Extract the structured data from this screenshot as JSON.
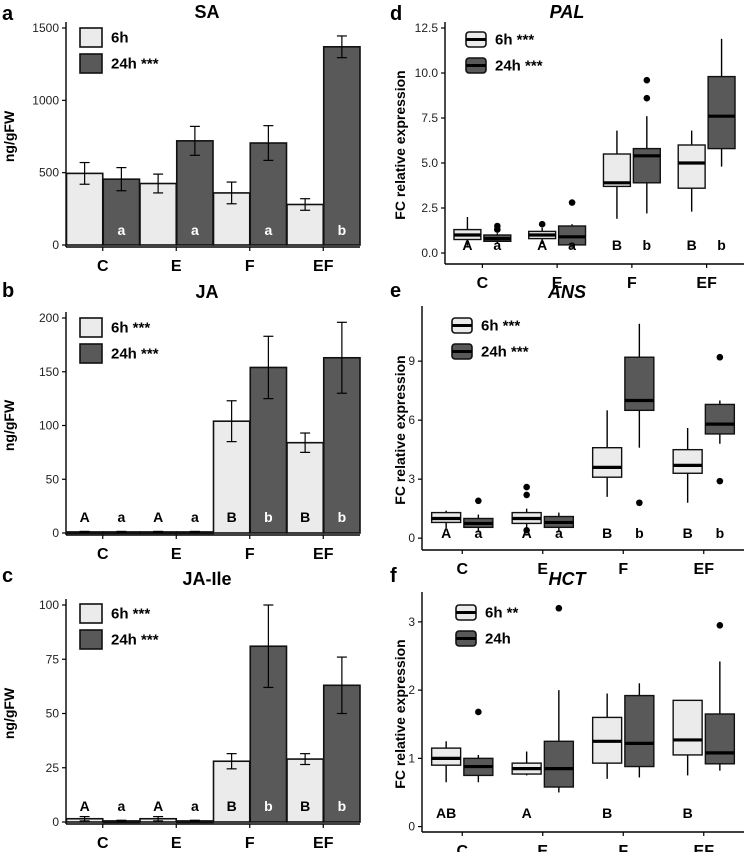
{
  "figure": {
    "colors": {
      "light": "#ebebeb",
      "dark": "#595959",
      "stroke": "#111111"
    }
  },
  "chart_data": [
    {
      "panel": "a",
      "type": "bar",
      "title": "SA",
      "title_italic": false,
      "ylabel": "ng/gFW",
      "ylim": [
        0,
        1500
      ],
      "yticks": [
        0,
        500,
        1000,
        1500
      ],
      "categories": [
        "C",
        "E",
        "F",
        "EF"
      ],
      "legend": [
        "6h",
        "24h ***"
      ],
      "series": [
        {
          "name": "6h",
          "values": [
            495,
            425,
            360,
            280
          ],
          "errors": [
            75,
            65,
            75,
            40
          ],
          "letters": [
            "",
            "",
            "",
            ""
          ]
        },
        {
          "name": "24h",
          "values": [
            455,
            720,
            705,
            1370
          ],
          "errors": [
            80,
            100,
            120,
            75
          ],
          "letters": [
            "a",
            "a",
            "a",
            "b"
          ]
        }
      ]
    },
    {
      "panel": "b",
      "type": "bar",
      "title": "JA",
      "title_italic": false,
      "ylabel": "ng/gFW",
      "ylim": [
        0,
        200
      ],
      "yticks": [
        0,
        50,
        100,
        150,
        200
      ],
      "categories": [
        "C",
        "E",
        "F",
        "EF"
      ],
      "legend": [
        "6h ***",
        "24h ***"
      ],
      "series": [
        {
          "name": "6h",
          "values": [
            1,
            1,
            104,
            84
          ],
          "errors": [
            0.5,
            0.5,
            19,
            9
          ],
          "letters": [
            "A",
            "A",
            "B",
            "B"
          ]
        },
        {
          "name": "24h",
          "values": [
            1,
            1,
            154,
            163
          ],
          "errors": [
            0.5,
            0.5,
            29,
            33
          ],
          "letters": [
            "a",
            "a",
            "b",
            "b"
          ]
        }
      ]
    },
    {
      "panel": "c",
      "type": "bar",
      "title": "JA-Ile",
      "title_italic": false,
      "ylabel": "ng/gFW",
      "ylim": [
        0,
        100
      ],
      "yticks": [
        0,
        25,
        50,
        75,
        100
      ],
      "categories": [
        "C",
        "E",
        "F",
        "EF"
      ],
      "legend": [
        "6h ***",
        "24h ***"
      ],
      "series": [
        {
          "name": "6h",
          "values": [
            1.5,
            1.5,
            28,
            29
          ],
          "errors": [
            1,
            1,
            3.5,
            2.5
          ],
          "letters": [
            "A",
            "A",
            "B",
            "B"
          ]
        },
        {
          "name": "24h",
          "values": [
            0.5,
            0.5,
            81,
            63
          ],
          "errors": [
            0.3,
            0.3,
            19,
            13
          ],
          "letters": [
            "a",
            "a",
            "b",
            "b"
          ]
        }
      ]
    },
    {
      "panel": "d",
      "type": "box",
      "title": "PAL",
      "title_italic": true,
      "ylabel": "FC relative expression",
      "ylim": [
        -0.5,
        12.5
      ],
      "yticks": [
        0.0,
        2.5,
        5.0,
        7.5,
        10.0,
        12.5
      ],
      "tick_decimals": 1,
      "categories": [
        "C",
        "E",
        "F",
        "EF"
      ],
      "legend": [
        "6h ***",
        "24h ***"
      ],
      "series": [
        {
          "name": "6h",
          "letters": [
            "A",
            "A",
            "B",
            "B"
          ],
          "boxes": [
            {
              "min": 0.4,
              "q1": 0.75,
              "med": 1.0,
              "q3": 1.3,
              "max": 2.0,
              "outliers": []
            },
            {
              "min": 0.5,
              "q1": 0.8,
              "med": 1.0,
              "q3": 1.2,
              "max": 1.4,
              "outliers": [
                1.6
              ]
            },
            {
              "min": 1.9,
              "q1": 3.7,
              "med": 3.9,
              "q3": 5.5,
              "max": 6.8,
              "outliers": []
            },
            {
              "min": 2.3,
              "q1": 3.6,
              "med": 5.0,
              "q3": 6.0,
              "max": 6.8,
              "outliers": []
            }
          ]
        },
        {
          "name": "24h",
          "letters": [
            "a",
            "a",
            "b",
            "b"
          ],
          "boxes": [
            {
              "min": 0.5,
              "q1": 0.65,
              "med": 0.8,
              "q3": 1.0,
              "max": 1.1,
              "outliers": [
                1.5,
                1.3
              ]
            },
            {
              "min": 0.2,
              "q1": 0.45,
              "med": 0.9,
              "q3": 1.5,
              "max": 1.6,
              "outliers": [
                2.8
              ]
            },
            {
              "min": 2.2,
              "q1": 3.9,
              "med": 5.4,
              "q3": 5.8,
              "max": 7.6,
              "outliers": [
                8.6,
                9.6
              ]
            },
            {
              "min": 4.8,
              "q1": 5.8,
              "med": 7.6,
              "q3": 9.8,
              "max": 11.9,
              "outliers": []
            }
          ]
        }
      ]
    },
    {
      "panel": "e",
      "type": "box",
      "title": "ANS",
      "title_italic": true,
      "ylabel": "FC relative expression",
      "ylim": [
        -0.5,
        11.5
      ],
      "yticks": [
        0,
        3,
        6,
        9
      ],
      "tick_decimals": 0,
      "categories": [
        "C",
        "E",
        "F",
        "EF"
      ],
      "legend": [
        "6h ***",
        "24h ***"
      ],
      "series": [
        {
          "name": "6h",
          "letters": [
            "A",
            "A",
            "B",
            "B"
          ],
          "boxes": [
            {
              "min": 0.5,
              "q1": 0.8,
              "med": 1.0,
              "q3": 1.3,
              "max": 1.4,
              "outliers": []
            },
            {
              "min": 0.5,
              "q1": 0.75,
              "med": 1.0,
              "q3": 1.3,
              "max": 1.5,
              "outliers": [
                2.2,
                2.6,
                0.4
              ]
            },
            {
              "min": 2.1,
              "q1": 3.1,
              "med": 3.6,
              "q3": 4.6,
              "max": 6.5,
              "outliers": []
            },
            {
              "min": 1.8,
              "q1": 3.3,
              "med": 3.7,
              "q3": 4.5,
              "max": 5.6,
              "outliers": []
            }
          ]
        },
        {
          "name": "24h",
          "letters": [
            "a",
            "a",
            "b",
            "b"
          ],
          "boxes": [
            {
              "min": 0.3,
              "q1": 0.55,
              "med": 0.75,
              "q3": 1.0,
              "max": 1.2,
              "outliers": [
                1.9
              ]
            },
            {
              "min": 0.3,
              "q1": 0.55,
              "med": 0.8,
              "q3": 1.1,
              "max": 1.3,
              "outliers": []
            },
            {
              "min": 4.6,
              "q1": 6.5,
              "med": 7.0,
              "q3": 9.2,
              "max": 10.9,
              "outliers": [
                1.8
              ]
            },
            {
              "min": 4.8,
              "q1": 5.3,
              "med": 5.8,
              "q3": 6.8,
              "max": 7.0,
              "outliers": [
                9.2,
                2.9
              ]
            }
          ]
        }
      ]
    },
    {
      "panel": "f",
      "type": "box",
      "title": "HCT",
      "title_italic": true,
      "ylabel": "FC relative expression",
      "ylim": [
        -0.05,
        3.35
      ],
      "yticks": [
        0,
        1,
        2,
        3
      ],
      "tick_decimals": 0,
      "categories": [
        "C",
        "E",
        "F",
        "EF"
      ],
      "legend": [
        "6h **",
        "24h"
      ],
      "series": [
        {
          "name": "6h",
          "letters": [
            "AB",
            "A",
            "B",
            "B"
          ],
          "boxes": [
            {
              "min": 0.65,
              "q1": 0.9,
              "med": 1.0,
              "q3": 1.15,
              "max": 1.25,
              "outliers": []
            },
            {
              "min": 0.75,
              "q1": 0.77,
              "med": 0.85,
              "q3": 0.93,
              "max": 1.1,
              "outliers": []
            },
            {
              "min": 0.7,
              "q1": 0.93,
              "med": 1.25,
              "q3": 1.6,
              "max": 1.95,
              "outliers": []
            },
            {
              "min": 0.75,
              "q1": 1.05,
              "med": 1.27,
              "q3": 1.85,
              "max": 1.85,
              "outliers": []
            }
          ]
        },
        {
          "name": "24h",
          "letters": [
            "",
            "",
            "",
            ""
          ],
          "boxes": [
            {
              "min": 0.65,
              "q1": 0.75,
              "med": 0.88,
              "q3": 1.0,
              "max": 1.05,
              "outliers": [
                1.68
              ]
            },
            {
              "min": 0.5,
              "q1": 0.58,
              "med": 0.85,
              "q3": 1.25,
              "max": 2.0,
              "outliers": [
                3.2
              ]
            },
            {
              "min": 0.72,
              "q1": 0.88,
              "med": 1.22,
              "q3": 1.92,
              "max": 2.1,
              "outliers": []
            },
            {
              "min": 0.82,
              "q1": 0.92,
              "med": 1.08,
              "q3": 1.65,
              "max": 2.42,
              "outliers": [
                2.95
              ]
            }
          ]
        }
      ]
    }
  ]
}
